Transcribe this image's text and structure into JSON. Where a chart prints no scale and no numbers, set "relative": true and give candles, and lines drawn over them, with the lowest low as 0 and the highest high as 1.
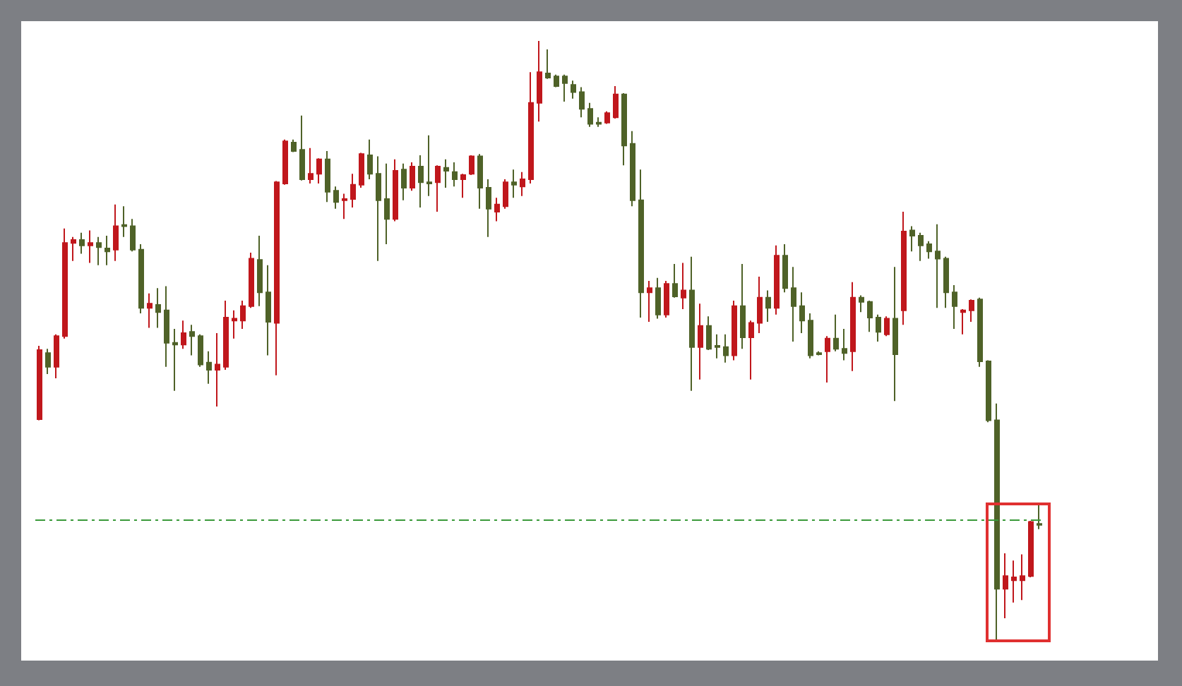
{
  "chart_data": {
    "type": "candlestick",
    "relative": true,
    "categories": [
      null,
      null,
      null,
      null,
      null,
      null,
      null,
      null,
      null,
      null,
      null,
      null,
      null,
      null,
      null,
      null,
      null,
      null,
      null,
      null,
      null,
      null,
      null,
      null,
      null,
      null,
      null,
      null,
      null,
      null,
      null,
      null,
      null,
      null,
      null,
      null,
      null,
      null,
      null,
      null,
      null,
      null,
      null,
      null,
      null,
      null,
      null,
      null,
      null,
      null,
      null,
      null,
      null,
      null,
      null,
      null,
      null,
      null,
      null,
      null,
      null,
      null,
      null,
      null,
      null,
      null,
      null,
      null,
      null,
      null,
      null,
      null,
      null,
      null,
      null,
      null,
      null,
      null,
      null,
      null,
      null,
      null,
      null,
      null,
      null,
      null,
      null,
      null,
      null,
      null,
      null,
      null,
      null,
      null,
      null,
      null,
      null,
      null,
      null,
      null,
      null,
      null,
      null,
      null,
      null,
      null,
      null,
      null,
      null,
      null,
      null,
      null,
      null,
      null,
      null,
      null,
      null,
      null,
      null
    ],
    "ohlc": [
      [
        0.371,
        0.493,
        0.369,
        0.486
      ],
      [
        0.481,
        0.488,
        0.446,
        0.458
      ],
      [
        0.458,
        0.512,
        0.439,
        0.509
      ],
      [
        0.509,
        0.688,
        0.505,
        0.664
      ],
      [
        0.664,
        0.674,
        0.634,
        0.669
      ],
      [
        0.669,
        0.681,
        0.646,
        0.66
      ],
      [
        0.66,
        0.685,
        0.631,
        0.664
      ],
      [
        0.664,
        0.674,
        0.627,
        0.657
      ],
      [
        0.655,
        0.676,
        0.627,
        0.65
      ],
      [
        0.653,
        0.728,
        0.634,
        0.692
      ],
      [
        0.694,
        0.725,
        0.674,
        0.692
      ],
      [
        0.692,
        0.704,
        0.65,
        0.653
      ],
      [
        0.653,
        0.662,
        0.547,
        0.556
      ],
      [
        0.556,
        0.58,
        0.523,
        0.563
      ],
      [
        0.561,
        0.589,
        0.523,
        0.549
      ],
      [
        0.552,
        0.592,
        0.458,
        0.498
      ],
      [
        0.498,
        0.521,
        0.418,
        0.495
      ],
      [
        0.495,
        0.535,
        0.488,
        0.514
      ],
      [
        0.516,
        0.528,
        0.477,
        0.509
      ],
      [
        0.509,
        0.512,
        0.458,
        0.462
      ],
      [
        0.465,
        0.484,
        0.43,
        0.453
      ],
      [
        0.453,
        0.514,
        0.392,
        0.462
      ],
      [
        0.458,
        0.568,
        0.453,
        0.54
      ],
      [
        0.535,
        0.552,
        0.505,
        0.538
      ],
      [
        0.535,
        0.568,
        0.521,
        0.559
      ],
      [
        0.559,
        0.648,
        0.556,
        0.638
      ],
      [
        0.636,
        0.676,
        0.559,
        0.582
      ],
      [
        0.582,
        0.627,
        0.477,
        0.533
      ],
      [
        0.531,
        0.767,
        0.444,
        0.765
      ],
      [
        0.763,
        0.836,
        0.761,
        0.833
      ],
      [
        0.831,
        0.836,
        0.815,
        0.817
      ],
      [
        0.819,
        0.876,
        0.768,
        0.77
      ],
      [
        0.77,
        0.822,
        0.763,
        0.779
      ],
      [
        0.779,
        0.805,
        0.763,
        0.803
      ],
      [
        0.803,
        0.817,
        0.732,
        0.749
      ],
      [
        0.751,
        0.758,
        0.721,
        0.732
      ],
      [
        0.735,
        0.746,
        0.704,
        0.737
      ],
      [
        0.737,
        0.779,
        0.723,
        0.761
      ],
      [
        0.761,
        0.814,
        0.756,
        0.812
      ],
      [
        0.81,
        0.836,
        0.77,
        0.779
      ],
      [
        0.779,
        0.808,
        0.634,
        0.735
      ],
      [
        0.737,
        0.796,
        0.662,
        0.704
      ],
      [
        0.704,
        0.803,
        0.7,
        0.784
      ],
      [
        0.786,
        0.796,
        0.735,
        0.756
      ],
      [
        0.756,
        0.798,
        0.751,
        0.791
      ],
      [
        0.791,
        0.81,
        0.723,
        0.765
      ],
      [
        0.765,
        0.843,
        0.742,
        0.763
      ],
      [
        0.765,
        0.793,
        0.716,
        0.791
      ],
      [
        0.789,
        0.803,
        0.756,
        0.784
      ],
      [
        0.782,
        0.798,
        0.758,
        0.77
      ],
      [
        0.77,
        0.779,
        0.739,
        0.777
      ],
      [
        0.779,
        0.81,
        0.777,
        0.808
      ],
      [
        0.808,
        0.812,
        0.721,
        0.756
      ],
      [
        0.756,
        0.77,
        0.674,
        0.721
      ],
      [
        0.716,
        0.739,
        0.7,
        0.728
      ],
      [
        0.725,
        0.77,
        0.721,
        0.765
      ],
      [
        0.765,
        0.786,
        0.739,
        0.761
      ],
      [
        0.758,
        0.782,
        0.742,
        0.77
      ],
      [
        0.77,
        0.948,
        0.763,
        0.897
      ],
      [
        0.897,
        1.0,
        0.866,
        0.948
      ],
      [
        0.946,
        0.986,
        0.937,
        0.939
      ],
      [
        0.941,
        0.944,
        0.923,
        0.925
      ],
      [
        0.941,
        0.944,
        0.899,
        0.93
      ],
      [
        0.927,
        0.934,
        0.904,
        0.915
      ],
      [
        0.915,
        0.923,
        0.873,
        0.887
      ],
      [
        0.887,
        0.897,
        0.857,
        0.862
      ],
      [
        0.864,
        0.873,
        0.857,
        0.862
      ],
      [
        0.864,
        0.883,
        0.862,
        0.88
      ],
      [
        0.873,
        0.925,
        0.871,
        0.911
      ],
      [
        0.911,
        0.913,
        0.793,
        0.826
      ],
      [
        0.829,
        0.85,
        0.725,
        0.735
      ],
      [
        0.735,
        0.786,
        0.54,
        0.582
      ],
      [
        0.582,
        0.601,
        0.533,
        0.589
      ],
      [
        0.589,
        0.606,
        0.538,
        0.545
      ],
      [
        0.545,
        0.601,
        0.54,
        0.596
      ],
      [
        0.596,
        0.629,
        0.573,
        0.575
      ],
      [
        0.573,
        0.631,
        0.554,
        0.585
      ],
      [
        0.585,
        0.641,
        0.418,
        0.491
      ],
      [
        0.491,
        0.563,
        0.437,
        0.526
      ],
      [
        0.526,
        0.542,
        0.486,
        0.488
      ],
      [
        0.493,
        0.512,
        0.472,
        0.491
      ],
      [
        0.491,
        0.512,
        0.465,
        0.477
      ],
      [
        0.477,
        0.568,
        0.469,
        0.559
      ],
      [
        0.559,
        0.629,
        0.488,
        0.507
      ],
      [
        0.507,
        0.535,
        0.437,
        0.531
      ],
      [
        0.531,
        0.608,
        0.514,
        0.573
      ],
      [
        0.573,
        0.585,
        0.533,
        0.556
      ],
      [
        0.556,
        0.66,
        0.545,
        0.643
      ],
      [
        0.643,
        0.662,
        0.582,
        0.589
      ],
      [
        0.589,
        0.624,
        0.5,
        0.559
      ],
      [
        0.559,
        0.582,
        0.514,
        0.535
      ],
      [
        0.535,
        0.547,
        0.472,
        0.477
      ],
      [
        0.481,
        0.484,
        0.477,
        0.479
      ],
      [
        0.484,
        0.509,
        0.432,
        0.505
      ],
      [
        0.505,
        0.545,
        0.484,
        0.488
      ],
      [
        0.488,
        0.521,
        0.469,
        0.481
      ],
      [
        0.484,
        0.599,
        0.451,
        0.573
      ],
      [
        0.573,
        0.577,
        0.549,
        0.566
      ],
      [
        0.566,
        0.568,
        0.516,
        0.54
      ],
      [
        0.54,
        0.545,
        0.5,
        0.516
      ],
      [
        0.512,
        0.542,
        0.509,
        0.538
      ],
      [
        0.538,
        0.624,
        0.401,
        0.479
      ],
      [
        0.552,
        0.716,
        0.528,
        0.683
      ],
      [
        0.685,
        0.692,
        0.65,
        0.676
      ],
      [
        0.676,
        0.681,
        0.634,
        0.66
      ],
      [
        0.662,
        0.667,
        0.638,
        0.65
      ],
      [
        0.65,
        0.695,
        0.556,
        0.638
      ],
      [
        0.638,
        0.641,
        0.556,
        0.582
      ],
      [
        0.582,
        0.594,
        0.521,
        0.559
      ],
      [
        0.549,
        0.554,
        0.512,
        0.552
      ],
      [
        0.552,
        0.57,
        0.533,
        0.568
      ],
      [
        0.57,
        0.573,
        0.458,
        0.467
      ],
      [
        0.467,
        0.469,
        0.366,
        0.369
      ],
      [
        0.369,
        0.397,
        0.0,
        0.089
      ],
      [
        0.089,
        0.148,
        0.04,
        0.11
      ],
      [
        0.103,
        0.136,
        0.066,
        0.108
      ],
      [
        0.103,
        0.146,
        0.07,
        0.11
      ],
      [
        0.11,
        0.202,
        0.108,
        0.2
      ],
      [
        0.197,
        0.228,
        0.188,
        0.195
      ]
    ],
    "colors": [
      "#c0171c",
      "#4f6228",
      "#c0171c",
      "#c0171c",
      "#c0171c",
      "#4f6228",
      "#c0171c",
      "#4f6228",
      "#4f6228",
      "#c0171c",
      "#4f6228",
      "#4f6228",
      "#4f6228",
      "#c0171c",
      "#4f6228",
      "#4f6228",
      "#4f6228",
      "#c0171c",
      "#4f6228",
      "#4f6228",
      "#4f6228",
      "#c0171c",
      "#c0171c",
      "#c0171c",
      "#c0171c",
      "#c0171c",
      "#4f6228",
      "#4f6228",
      "#c0171c",
      "#c0171c",
      "#4f6228",
      "#4f6228",
      "#c0171c",
      "#c0171c",
      "#4f6228",
      "#4f6228",
      "#c0171c",
      "#c0171c",
      "#c0171c",
      "#4f6228",
      "#4f6228",
      "#4f6228",
      "#c0171c",
      "#4f6228",
      "#c0171c",
      "#4f6228",
      "#4f6228",
      "#c0171c",
      "#4f6228",
      "#4f6228",
      "#c0171c",
      "#c0171c",
      "#4f6228",
      "#4f6228",
      "#c0171c",
      "#c0171c",
      "#4f6228",
      "#c0171c",
      "#c0171c",
      "#c0171c",
      "#4f6228",
      "#4f6228",
      "#4f6228",
      "#4f6228",
      "#4f6228",
      "#4f6228",
      "#4f6228",
      "#c0171c",
      "#c0171c",
      "#4f6228",
      "#4f6228",
      "#4f6228",
      "#c0171c",
      "#4f6228",
      "#c0171c",
      "#4f6228",
      "#c0171c",
      "#4f6228",
      "#c0171c",
      "#4f6228",
      "#4f6228",
      "#4f6228",
      "#c0171c",
      "#4f6228",
      "#c0171c",
      "#c0171c",
      "#4f6228",
      "#c0171c",
      "#4f6228",
      "#4f6228",
      "#4f6228",
      "#4f6228",
      "#4f6228",
      "#c0171c",
      "#4f6228",
      "#4f6228",
      "#c0171c",
      "#4f6228",
      "#4f6228",
      "#4f6228",
      "#c0171c",
      "#4f6228",
      "#c0171c",
      "#4f6228",
      "#4f6228",
      "#4f6228",
      "#4f6228",
      "#4f6228",
      "#4f6228",
      "#c0171c",
      "#c0171c",
      "#4f6228",
      "#4f6228",
      "#4f6228",
      "#c0171c",
      "#c0171c",
      "#c0171c",
      "#c0171c",
      "#4f6228"
    ],
    "ref_lines": [
      {
        "axis": "y",
        "value": 0.204,
        "color": "#3a9a3a",
        "line_style": "dashed"
      }
    ]
  }
}
